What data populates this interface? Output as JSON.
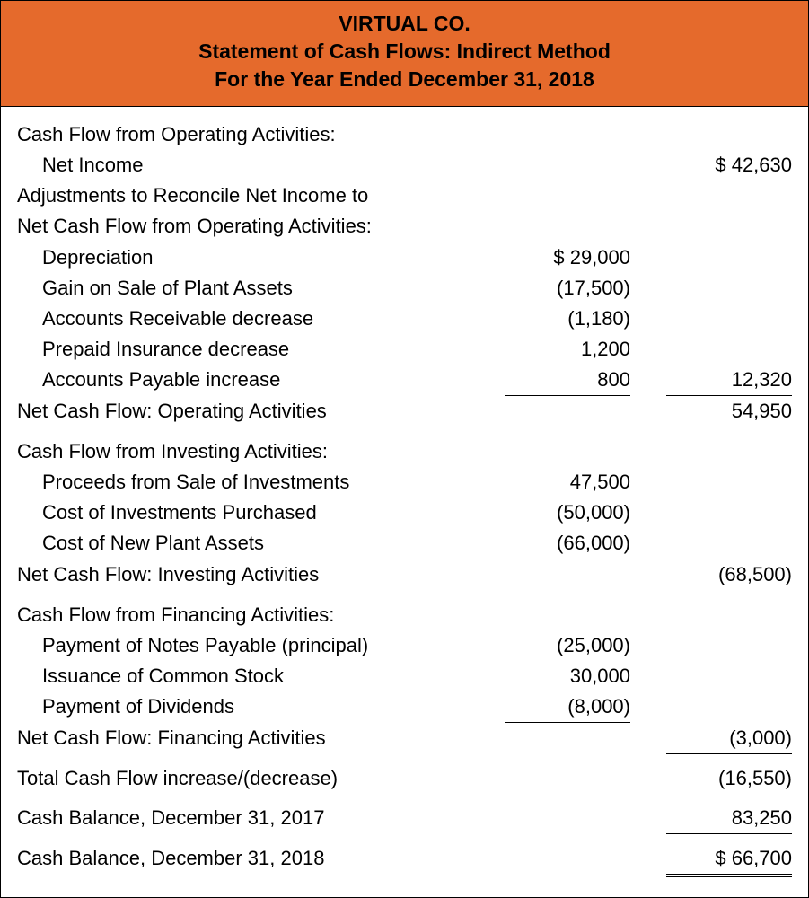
{
  "header": {
    "company": "VIRTUAL CO.",
    "title": "Statement of Cash Flows: Indirect Method",
    "period": "For the Year Ended December 31, 2018"
  },
  "header_bg": "#e56a2c",
  "operating": {
    "heading": "Cash Flow from Operating Activities:",
    "net_income_label": "Net Income",
    "net_income": "$ 42,630",
    "adjust_line1": "Adjustments to Reconcile Net Income to",
    "adjust_line2": "Net Cash Flow from Operating Activities:",
    "items": [
      {
        "label": "Depreciation",
        "col1": "$ 29,000"
      },
      {
        "label": "Gain on Sale of Plant Assets",
        "col1": "(17,500)"
      },
      {
        "label": "Accounts Receivable decrease",
        "col1": "(1,180)"
      },
      {
        "label": "Prepaid Insurance decrease",
        "col1": "1,200"
      },
      {
        "label": "Accounts Payable increase",
        "col1": "800"
      }
    ],
    "adjustments_subtotal": "12,320",
    "net_label": "Net Cash Flow: Operating Activities",
    "net": "54,950"
  },
  "investing": {
    "heading": "Cash Flow from Investing Activities:",
    "items": [
      {
        "label": "Proceeds from Sale of Investments",
        "col1": "47,500"
      },
      {
        "label": "Cost of Investments Purchased",
        "col1": "(50,000)"
      },
      {
        "label": "Cost of New Plant Assets",
        "col1": "(66,000)"
      }
    ],
    "net_label": "Net Cash Flow: Investing Activities",
    "net": "(68,500)"
  },
  "financing": {
    "heading": "Cash Flow from Financing Activities:",
    "items": [
      {
        "label": "Payment of Notes Payable (principal)",
        "col1": "(25,000)"
      },
      {
        "label": "Issuance of Common Stock",
        "col1": "30,000"
      },
      {
        "label": "Payment of Dividends",
        "col1": "(8,000)"
      }
    ],
    "net_label": "Net Cash Flow: Financing Activities",
    "net": "(3,000)"
  },
  "totals": {
    "change_label": "Total Cash Flow increase/(decrease)",
    "change": "(16,550)",
    "begin_label": "Cash Balance, December 31, 2017",
    "begin": "83,250",
    "end_label": "Cash Balance, December 31, 2018",
    "end": "$ 66,700"
  }
}
